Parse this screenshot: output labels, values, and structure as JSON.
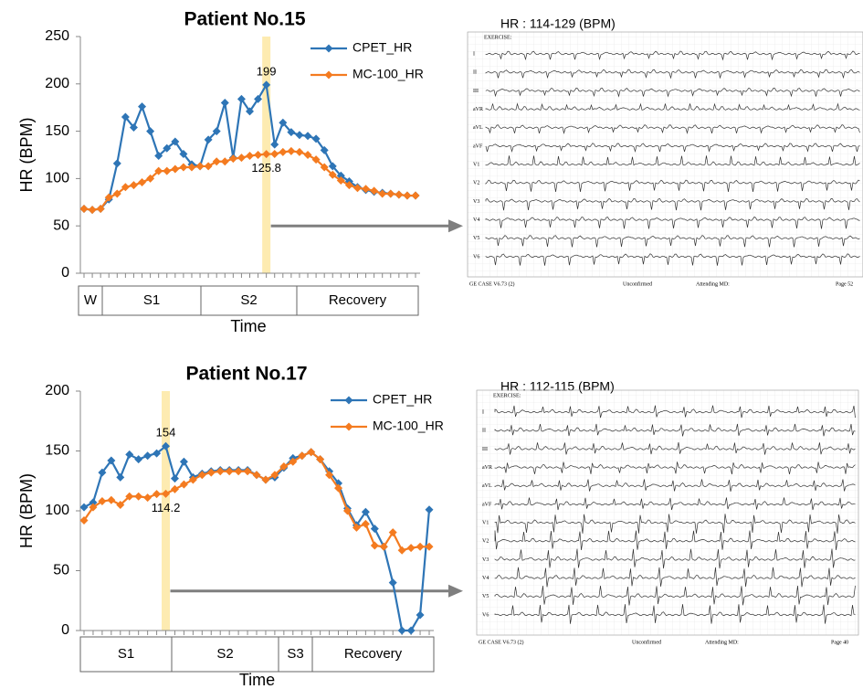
{
  "chart_data": [
    {
      "type": "line",
      "title": "Patient No.15",
      "y_label": "HR (BPM)",
      "x_label": "Time",
      "ylim": [
        0,
        250
      ],
      "yticks": [
        0,
        50,
        100,
        150,
        200,
        250
      ],
      "grid": false,
      "legend": "top-right",
      "phases": [
        "W",
        "S1",
        "S2",
        "Recovery"
      ],
      "series": [
        {
          "name": "CPET_HR",
          "color": "#2e75b6",
          "values": [
            68,
            67,
            68,
            78,
            116,
            165,
            154,
            176,
            150,
            124,
            132,
            139,
            126,
            115,
            113,
            141,
            150,
            180,
            122,
            184,
            171,
            184,
            199,
            136,
            159,
            149,
            146,
            145,
            142,
            130,
            113,
            103,
            97,
            91,
            88,
            86,
            85,
            84,
            83,
            82,
            82
          ],
          "value_labels": [
            null,
            null,
            null,
            null,
            null,
            null,
            null,
            null,
            null,
            null,
            null,
            null,
            null,
            null,
            null,
            null,
            null,
            null,
            null,
            null,
            null,
            null,
            "199",
            null,
            null,
            null,
            null,
            null,
            null,
            null,
            null,
            null,
            null,
            null,
            null,
            null,
            null,
            null,
            null,
            null,
            null
          ]
        },
        {
          "name": "MC-100_HR",
          "color": "#f47b20",
          "values": [
            68,
            67,
            68,
            80,
            84,
            91,
            93,
            96,
            100,
            108,
            108,
            110,
            112,
            112,
            113,
            113,
            118,
            118,
            121,
            122,
            124,
            125,
            125.8,
            126,
            128,
            129,
            128,
            125,
            120,
            112,
            104,
            98,
            93,
            90,
            89,
            87,
            84,
            84,
            83,
            82,
            82
          ],
          "value_labels": [
            null,
            null,
            null,
            null,
            null,
            null,
            null,
            null,
            null,
            null,
            null,
            null,
            null,
            null,
            null,
            null,
            null,
            null,
            null,
            null,
            null,
            null,
            "125.8",
            null,
            null,
            null,
            null,
            null,
            null,
            null,
            null,
            null,
            null,
            null,
            null,
            null,
            null,
            null,
            null,
            null,
            null
          ]
        }
      ]
    },
    {
      "type": "line",
      "title": "Patient No.17",
      "y_label": "HR (BPM)",
      "x_label": "Time",
      "ylim": [
        0,
        200
      ],
      "yticks": [
        0,
        50,
        100,
        150,
        200
      ],
      "grid": false,
      "legend": "top-right",
      "phases": [
        "S1",
        "S2",
        "S3",
        "Recovery"
      ],
      "series": [
        {
          "name": "CPET_HR",
          "color": "#2e75b6",
          "values": [
            103,
            107,
            132,
            142,
            128,
            147,
            143,
            146,
            148,
            154,
            127,
            141,
            128,
            131,
            133,
            134,
            134,
            134,
            134,
            130,
            126,
            128,
            136,
            144,
            146,
            149,
            143,
            133,
            123,
            102,
            88,
            99,
            85,
            70,
            40,
            0,
            0,
            13,
            101
          ],
          "value_labels": [
            null,
            null,
            null,
            null,
            null,
            null,
            null,
            null,
            null,
            "154",
            null,
            null,
            null,
            null,
            null,
            null,
            null,
            null,
            null,
            null,
            null,
            null,
            null,
            null,
            null,
            null,
            null,
            null,
            null,
            null,
            null,
            null,
            null,
            null,
            null,
            null,
            null,
            null,
            null
          ]
        },
        {
          "name": "MC-100_HR",
          "color": "#f47b20",
          "values": [
            92,
            103,
            108,
            109,
            105,
            112,
            112,
            111,
            114,
            114.2,
            118,
            122,
            126,
            130,
            132,
            133,
            133,
            133,
            133,
            130,
            126,
            130,
            137,
            141,
            146,
            149,
            143,
            130,
            119,
            100,
            86,
            89,
            71,
            70,
            82,
            67,
            69,
            70,
            70
          ],
          "value_labels": [
            null,
            null,
            null,
            null,
            null,
            null,
            null,
            null,
            null,
            "114.2",
            null,
            null,
            null,
            null,
            null,
            null,
            null,
            null,
            null,
            null,
            null,
            null,
            null,
            null,
            null,
            null,
            null,
            null,
            null,
            null,
            null,
            null,
            null,
            null,
            null,
            null,
            null,
            null,
            null
          ]
        }
      ]
    }
  ],
  "ecg_panels": [
    {
      "title": "HR : 114-129 (BPM)",
      "header": "EXERCISE:",
      "leads": [
        "I",
        "II",
        "III",
        "aVR",
        "aVL",
        "aVF",
        "V1",
        "V2",
        "V3",
        "V4",
        "V5",
        "V6"
      ],
      "footer": [
        "GE CASE V6.73 (2)",
        "Unconfirmed",
        "Attending MD:",
        "Page 52"
      ]
    },
    {
      "title": "HR : 112-115 (BPM)",
      "header": "EXERCISE:",
      "leads": [
        "I",
        "II",
        "III",
        "aVR",
        "aVL",
        "aVF",
        "V1",
        "V2",
        "V3",
        "V4",
        "V5",
        "V6"
      ],
      "footer": [
        "GE CASE V6.73 (2)",
        "Unconfirmed",
        "Attending MD:",
        "Page 40"
      ]
    }
  ]
}
